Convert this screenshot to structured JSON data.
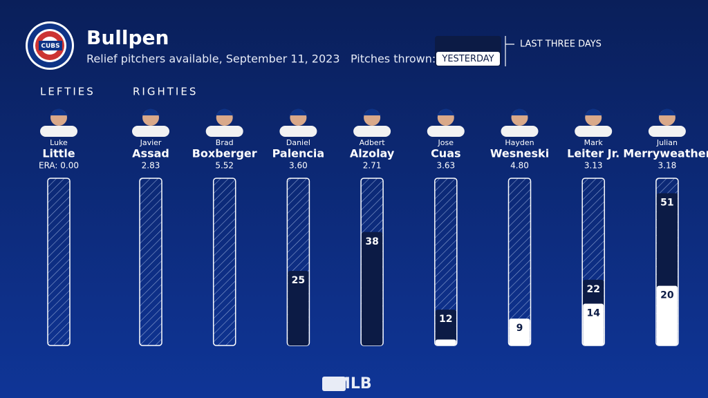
{
  "chart_data": {
    "type": "bar",
    "title": "Bullpen",
    "subtitle": "Relief pitchers available, September 11, 2023",
    "logo_text": "CUBS",
    "legend_label": "Pitches thrown:",
    "group_labels": [
      "LEFTIES",
      "RIGHTIES"
    ],
    "first_names": [
      "Luke",
      "Javier",
      "Brad",
      "Daniel",
      "Adbert",
      "Jose",
      "Hayden",
      "Mark",
      "Julian"
    ],
    "categories": [
      "Little",
      "Assad",
      "Boxberger",
      "Palencia",
      "Alzolay",
      "Cuas",
      "Wesneski",
      "Leiter Jr.",
      "Merryweather"
    ],
    "era_labels": [
      "ERA: 0.00",
      "2.83",
      "5.52",
      "3.60",
      "2.71",
      "3.63",
      "4.80",
      "3.13",
      "3.18"
    ],
    "ylim": [
      0,
      56
    ],
    "series": [
      {
        "name": "LAST THREE DAYS",
        "color": "#0c1b45",
        "values": [
          null,
          null,
          null,
          25,
          38,
          12,
          null,
          22,
          51
        ]
      },
      {
        "name": "YESTERDAY",
        "color": "#ffffff",
        "values": [
          null,
          null,
          null,
          null,
          null,
          2,
          9,
          14,
          20
        ],
        "value_labels": [
          null,
          null,
          null,
          null,
          null,
          null,
          "9",
          "14",
          "20"
        ]
      }
    ],
    "footer": "MLB"
  }
}
